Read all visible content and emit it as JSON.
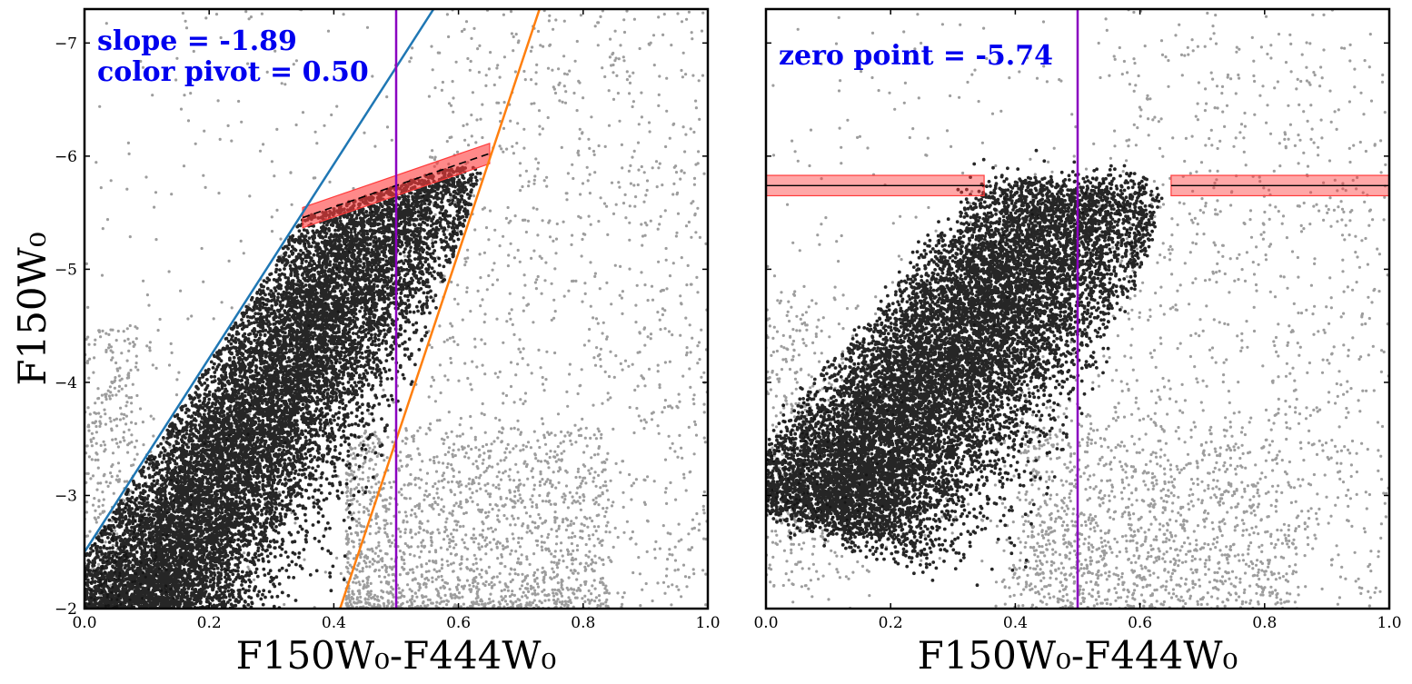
{
  "colors": {
    "selected_points": "#000000",
    "background_points": "#8c8c8c",
    "pivot_line": "#8a00c0",
    "blue_line": "#1f77b4",
    "orange_line": "#ff7f0e",
    "band_fill": "#ff3b3b",
    "annotation_text": "#0000ee"
  },
  "chart_data": [
    {
      "type": "scatter",
      "panel": "left",
      "xlabel": "F150W₀-F444W₀",
      "ylabel": "F150W₀",
      "xlim": [
        0.0,
        1.0
      ],
      "ylim": [
        -2.0,
        -7.3
      ],
      "x_ticks": [
        "0.0",
        "0.2",
        "0.4",
        "0.6",
        "0.8",
        "1.0"
      ],
      "x_tick_values": [
        0.0,
        0.2,
        0.4,
        0.6,
        0.8,
        1.0
      ],
      "y_ticks": [
        "−2",
        "−3",
        "−4",
        "−5",
        "−6",
        "−7"
      ],
      "y_tick_values": [
        -2,
        -3,
        -4,
        -5,
        -6,
        -7
      ],
      "annotations": [
        "slope = -1.89",
        "color pivot = 0.50"
      ],
      "color_pivot": 0.5,
      "selection_lines": [
        {
          "name": "blue boundary",
          "x": [
            0.0,
            0.56
          ],
          "y": [
            -2.5,
            -7.3
          ]
        },
        {
          "name": "orange boundary",
          "x": [
            0.41,
            0.73
          ],
          "y": [
            -2.0,
            -7.3
          ]
        }
      ],
      "trgb_fit": {
        "slope": -1.89,
        "x_range": [
          0.35,
          0.65
        ],
        "zero_point": -5.74,
        "band_halfwidth": 0.09
      },
      "series": [
        {
          "name": "selected stars",
          "color": "#000000",
          "approx_count": 12000
        },
        {
          "name": "all other stars",
          "color": "#8c8c8c",
          "approx_count": 3500
        }
      ]
    },
    {
      "type": "scatter",
      "panel": "right",
      "xlabel": "F150W₀-F444W₀",
      "ylabel": "",
      "xlim": [
        0.0,
        1.0
      ],
      "ylim": [
        -2.0,
        -7.3
      ],
      "x_ticks": [
        "0.0",
        "0.2",
        "0.4",
        "0.6",
        "0.8",
        "1.0"
      ],
      "x_tick_values": [
        0.0,
        0.2,
        0.4,
        0.6,
        0.8,
        1.0
      ],
      "annotations": [
        "zero point = -5.74"
      ],
      "color_pivot": 0.5,
      "trgb_zero_point": -5.74,
      "band_halfwidth": 0.09,
      "band_x_segments": [
        [
          0.0,
          0.35
        ],
        [
          0.65,
          1.0
        ]
      ],
      "series": [
        {
          "name": "rectified selected stars",
          "color": "#000000",
          "approx_count": 12000
        },
        {
          "name": "all other stars",
          "color": "#8c8c8c",
          "approx_count": 3500
        }
      ]
    }
  ]
}
